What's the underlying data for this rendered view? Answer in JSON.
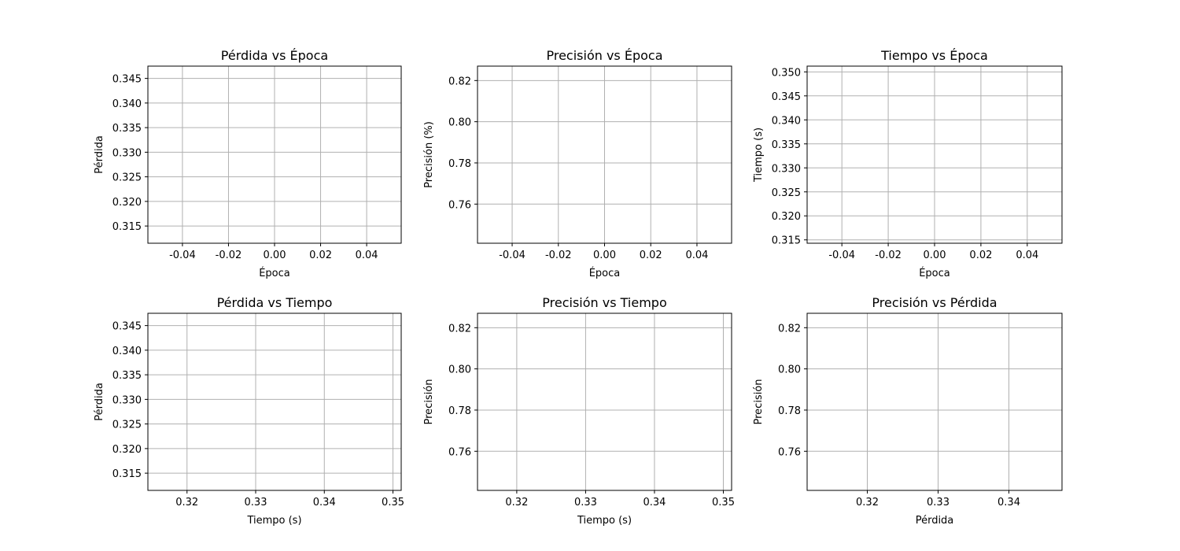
{
  "chart_data": [
    {
      "type": "line",
      "title": "Pérdida vs Época",
      "xlabel": "Época",
      "ylabel": "Pérdida",
      "xlim": [
        -0.055,
        0.055
      ],
      "ylim": [
        0.3115,
        0.3475
      ],
      "xticks": [
        "-0.04",
        "-0.02",
        "0.00",
        "0.02",
        "0.04"
      ],
      "yticks": [
        "0.315",
        "0.320",
        "0.325",
        "0.330",
        "0.335",
        "0.340",
        "0.345"
      ],
      "grid": true,
      "series": []
    },
    {
      "type": "line",
      "title": "Precisión vs Época",
      "xlabel": "Época",
      "ylabel": "Precisión (%)",
      "xlim": [
        -0.055,
        0.055
      ],
      "ylim": [
        0.741,
        0.827
      ],
      "xticks": [
        "-0.04",
        "-0.02",
        "0.00",
        "0.02",
        "0.04"
      ],
      "yticks": [
        "0.76",
        "0.78",
        "0.80",
        "0.82"
      ],
      "grid": true,
      "series": []
    },
    {
      "type": "line",
      "title": "Tiempo vs Época",
      "xlabel": "Época",
      "ylabel": "Tiempo (s)",
      "xlim": [
        -0.055,
        0.055
      ],
      "ylim": [
        0.3143,
        0.3512
      ],
      "xticks": [
        "-0.04",
        "-0.02",
        "0.00",
        "0.02",
        "0.04"
      ],
      "yticks": [
        "0.315",
        "0.320",
        "0.325",
        "0.330",
        "0.335",
        "0.340",
        "0.345",
        "0.350"
      ],
      "grid": true,
      "series": []
    },
    {
      "type": "scatter",
      "title": "Pérdida vs Tiempo",
      "xlabel": "Tiempo (s)",
      "ylabel": "Pérdida",
      "xlim": [
        0.3143,
        0.3512
      ],
      "ylim": [
        0.3115,
        0.3475
      ],
      "xticks": [
        "0.32",
        "0.33",
        "0.34",
        "0.35"
      ],
      "yticks": [
        "0.315",
        "0.320",
        "0.325",
        "0.330",
        "0.335",
        "0.340",
        "0.345"
      ],
      "grid": true,
      "series": []
    },
    {
      "type": "scatter",
      "title": "Precisión vs Tiempo",
      "xlabel": "Tiempo (s)",
      "ylabel": "Precisión",
      "xlim": [
        0.3143,
        0.3512
      ],
      "ylim": [
        0.741,
        0.827
      ],
      "xticks": [
        "0.32",
        "0.33",
        "0.34",
        "0.35"
      ],
      "yticks": [
        "0.76",
        "0.78",
        "0.80",
        "0.82"
      ],
      "grid": true,
      "series": []
    },
    {
      "type": "scatter",
      "title": "Precisión vs Pérdida",
      "xlabel": "Pérdida",
      "ylabel": "Precisión",
      "xlim": [
        0.3115,
        0.3475
      ],
      "ylim": [
        0.741,
        0.827
      ],
      "xticks": [
        "0.32",
        "0.33",
        "0.34"
      ],
      "yticks": [
        "0.76",
        "0.78",
        "0.80",
        "0.82"
      ],
      "grid": true,
      "series": []
    }
  ]
}
